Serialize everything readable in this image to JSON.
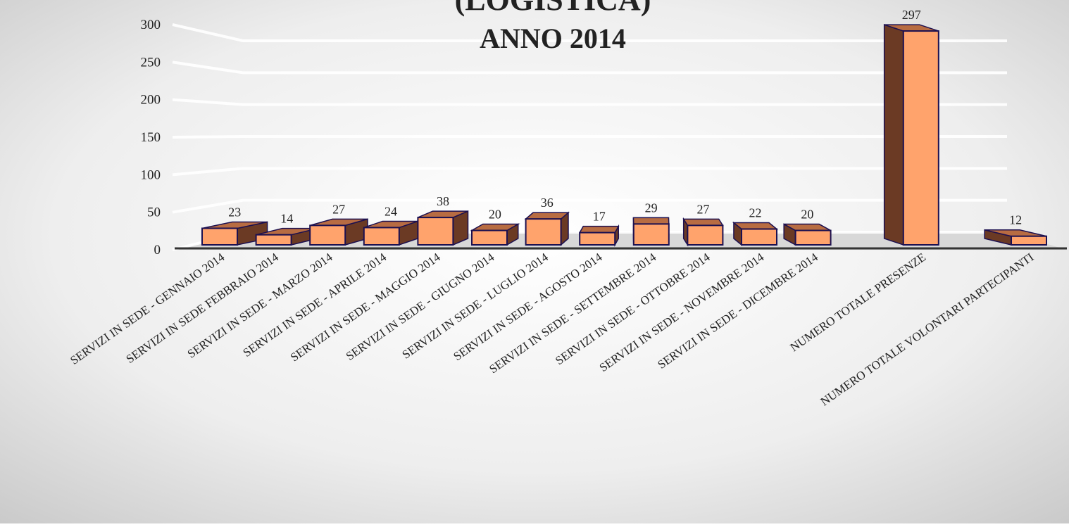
{
  "chart_data": {
    "type": "bar3d",
    "title": "(LOGISTICA)",
    "subtitle": "ANNO 2014",
    "categories": [
      "SERVIZI IN SEDE - GENNAIO 2014",
      "SERVIZI IN SEDE FEBBRAIO 2014",
      "SERVIZI IN SEDE - MARZO 2014",
      "SERVIZI IN SEDE - APRILE 2014",
      "SERVIZI IN SEDE - MAGGIO 2014",
      "SERVIZI IN SEDE - GIUGNO 2014",
      "SERVIZI IN SEDE - LUGLIO 2014",
      "SERVIZI IN SEDE - AGOSTO 2014",
      "SERVIZI IN SEDE - SETTEMBRE 2014",
      "SERVIZI IN SEDE - OTTOBRE 2014",
      "SERVIZI IN SEDE - NOVEMBRE 2014",
      "SERVIZI IN SEDE - DICEMBRE 2014",
      null,
      "NUMERO TOTALE PRESENZE",
      null,
      "NUMERO TOTALE VOLONTARI PARTECIPANTI"
    ],
    "values": [
      23,
      14,
      27,
      24,
      38,
      20,
      36,
      17,
      29,
      27,
      22,
      20,
      null,
      297,
      null,
      12
    ],
    "color": "#ffa36c",
    "ylim": [
      0,
      300
    ],
    "yticks": [
      0,
      50,
      100,
      150,
      200,
      250,
      300
    ],
    "grid": true
  }
}
